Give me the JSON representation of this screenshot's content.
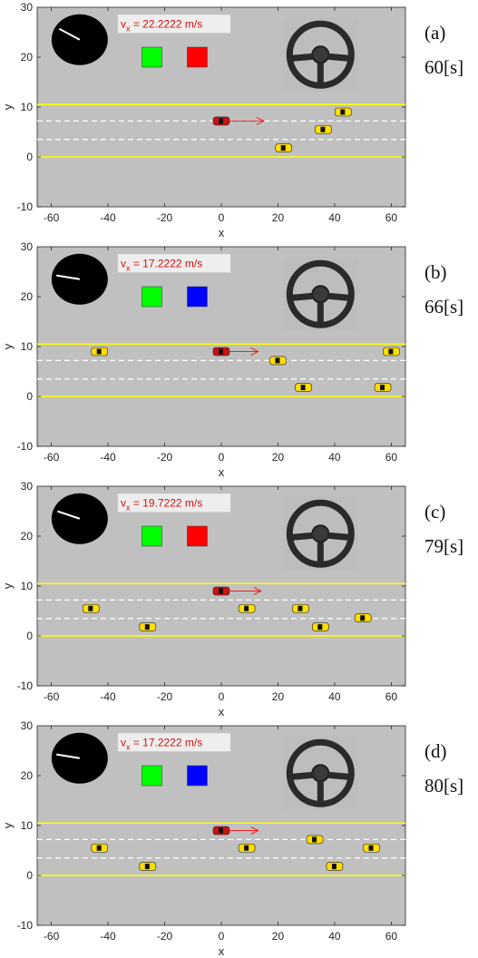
{
  "chart_data": [
    {
      "type": "scatter",
      "panel_label": "(a)",
      "time_label": "60[s]",
      "xlabel": "x",
      "ylabel": "y",
      "xlim": [
        -65,
        65
      ],
      "ylim": [
        -10,
        30
      ],
      "xticks": [
        -60,
        -40,
        -20,
        0,
        20,
        40,
        60
      ],
      "yticks": [
        -10,
        0,
        10,
        20
      ],
      "road_edges_y": [
        0,
        10.5
      ],
      "lane_lines_y": [
        3.5,
        7.2
      ],
      "ego": {
        "x": 0,
        "y": 7.2,
        "arrow_to_x": 15
      },
      "others": [
        {
          "x": 22,
          "y": 1.8
        },
        {
          "x": 36,
          "y": 5.5
        },
        {
          "x": 43,
          "y": 9.0
        }
      ],
      "speed": {
        "prefix": "v",
        "subscript": "x",
        "text": " = 22.2222 m/s"
      },
      "indicators": [
        "#00ff00",
        "#ff0000"
      ],
      "gauge_needle_angle_deg": 150
    },
    {
      "type": "scatter",
      "panel_label": "(b)",
      "time_label": "66[s]",
      "xlabel": "x",
      "ylabel": "y",
      "xlim": [
        -65,
        65
      ],
      "ylim": [
        -10,
        30
      ],
      "xticks": [
        -60,
        -40,
        -20,
        0,
        20,
        40,
        60
      ],
      "yticks": [
        -10,
        0,
        10,
        20
      ],
      "road_edges_y": [
        0,
        10.5
      ],
      "lane_lines_y": [
        3.5,
        7.2
      ],
      "ego": {
        "x": 0,
        "y": 9.0,
        "arrow_to_x": 13
      },
      "others": [
        {
          "x": -43,
          "y": 9.0
        },
        {
          "x": 20,
          "y": 7.2
        },
        {
          "x": 29,
          "y": 1.8
        },
        {
          "x": 57,
          "y": 1.8
        },
        {
          "x": 60,
          "y": 9.0
        }
      ],
      "speed": {
        "prefix": "v",
        "subscript": "x",
        "text": " = 17.2222 m/s"
      },
      "indicators": [
        "#00ff00",
        "#0000ff"
      ],
      "gauge_needle_angle_deg": 170
    },
    {
      "type": "scatter",
      "panel_label": "(c)",
      "time_label": "79[s]",
      "xlabel": "x",
      "ylabel": "y",
      "xlim": [
        -65,
        65
      ],
      "ylim": [
        -10,
        30
      ],
      "xticks": [
        -60,
        -40,
        -20,
        0,
        20,
        40,
        60
      ],
      "yticks": [
        -10,
        0,
        10,
        20
      ],
      "road_edges_y": [
        0,
        10.5
      ],
      "lane_lines_y": [
        3.5,
        7.2
      ],
      "ego": {
        "x": 0,
        "y": 9.0,
        "arrow_to_x": 14
      },
      "others": [
        {
          "x": -46,
          "y": 5.5
        },
        {
          "x": -26,
          "y": 1.8
        },
        {
          "x": 9,
          "y": 5.5
        },
        {
          "x": 28,
          "y": 5.5
        },
        {
          "x": 35,
          "y": 1.8
        },
        {
          "x": 50,
          "y": 3.6
        }
      ],
      "speed": {
        "prefix": "v",
        "subscript": "x",
        "text": " = 19.7222 m/s"
      },
      "indicators": [
        "#00ff00",
        "#ff0000"
      ],
      "gauge_needle_angle_deg": 160
    },
    {
      "type": "scatter",
      "panel_label": "(d)",
      "time_label": "80[s]",
      "xlabel": "x",
      "ylabel": "y",
      "xlim": [
        -65,
        65
      ],
      "ylim": [
        -10,
        30
      ],
      "xticks": [
        -60,
        -40,
        -20,
        0,
        20,
        40,
        60
      ],
      "yticks": [
        -10,
        0,
        10,
        20
      ],
      "road_edges_y": [
        0,
        10.5
      ],
      "lane_lines_y": [
        3.5,
        7.2
      ],
      "ego": {
        "x": 0,
        "y": 9.0,
        "arrow_to_x": 13
      },
      "others": [
        {
          "x": -43,
          "y": 5.5
        },
        {
          "x": -26,
          "y": 1.8
        },
        {
          "x": 9,
          "y": 5.5
        },
        {
          "x": 33,
          "y": 7.2
        },
        {
          "x": 40,
          "y": 1.8
        },
        {
          "x": 53,
          "y": 5.5
        }
      ],
      "speed": {
        "prefix": "v",
        "subscript": "x",
        "text": " = 17.2222 m/s"
      },
      "indicators": [
        "#00ff00",
        "#0000ff"
      ],
      "gauge_needle_angle_deg": 170
    }
  ],
  "colors": {
    "plot_background": "#c0c0c0",
    "road_edge": "#ffff00",
    "lane_line": "#ffffff",
    "ego_car": "#cc1111",
    "other_car": "#ffdd00",
    "arrow": "#ee2222",
    "speed_text": "#d01010",
    "gauge": "#000000",
    "wheel_bg": "#bdbdbd"
  }
}
